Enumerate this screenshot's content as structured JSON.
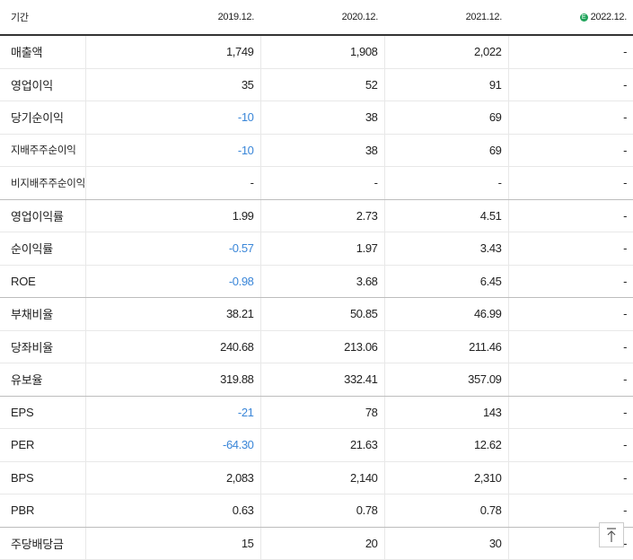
{
  "table": {
    "header": [
      "기간",
      "2019.12.",
      "2020.12.",
      "2021.12.",
      "2022.12."
    ],
    "rows": [
      [
        "매출액",
        "1,749",
        "1,908",
        "2,022",
        "-"
      ],
      [
        "영업이익",
        "35",
        "52",
        "91",
        "-"
      ],
      [
        "당기순이익",
        "-10",
        "38",
        "69",
        "-"
      ],
      [
        "지배주주순이익",
        "-10",
        "38",
        "69",
        "-"
      ],
      [
        "비지배주주순이익",
        "-",
        "-",
        "-",
        "-"
      ],
      [
        "영업이익률",
        "1.99",
        "2.73",
        "4.51",
        "-"
      ],
      [
        "순이익률",
        "-0.57",
        "1.97",
        "3.43",
        "-"
      ],
      [
        "ROE",
        "-0.98",
        "3.68",
        "6.45",
        "-"
      ],
      [
        "부채비율",
        "38.21",
        "50.85",
        "46.99",
        "-"
      ],
      [
        "당좌비율",
        "240.68",
        "213.06",
        "211.46",
        "-"
      ],
      [
        "유보율",
        "319.88",
        "332.41",
        "357.09",
        "-"
      ],
      [
        "EPS",
        "-21",
        "78",
        "143",
        "-"
      ],
      [
        "PER",
        "-64.30",
        "21.63",
        "12.62",
        "-"
      ],
      [
        "BPS",
        "2,083",
        "2,140",
        "2,310",
        "-"
      ],
      [
        "PBR",
        "0.63",
        "0.78",
        "0.78",
        "-"
      ],
      [
        "주당배당금",
        "15",
        "20",
        "30",
        "-"
      ]
    ]
  }
}
